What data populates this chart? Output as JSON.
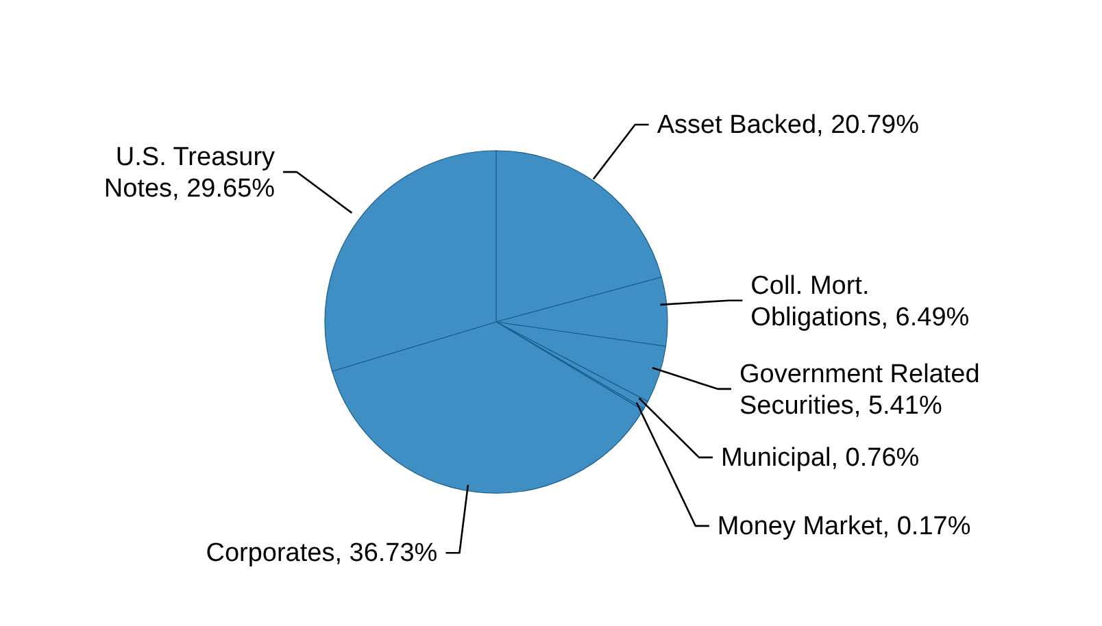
{
  "chart_data": {
    "type": "pie",
    "categories": [
      "Asset Backed",
      "Coll. Mort. Obligations",
      "Government Related Securities",
      "Municipal",
      "Money Market",
      "Corporates",
      "U.S. Treasury Notes"
    ],
    "values": [
      20.79,
      6.49,
      5.41,
      0.76,
      0.17,
      36.73,
      29.65
    ],
    "value_labels": [
      "20.79%",
      "6.49%",
      "5.41%",
      "0.76%",
      "0.17%",
      "36.73%",
      "29.65%"
    ],
    "colors": [
      "#3f8fc4",
      "#3f8fc4",
      "#3f8fc4",
      "#3f8fc4",
      "#3f8fc4",
      "#3f8fc4",
      "#3f8fc4"
    ]
  }
}
